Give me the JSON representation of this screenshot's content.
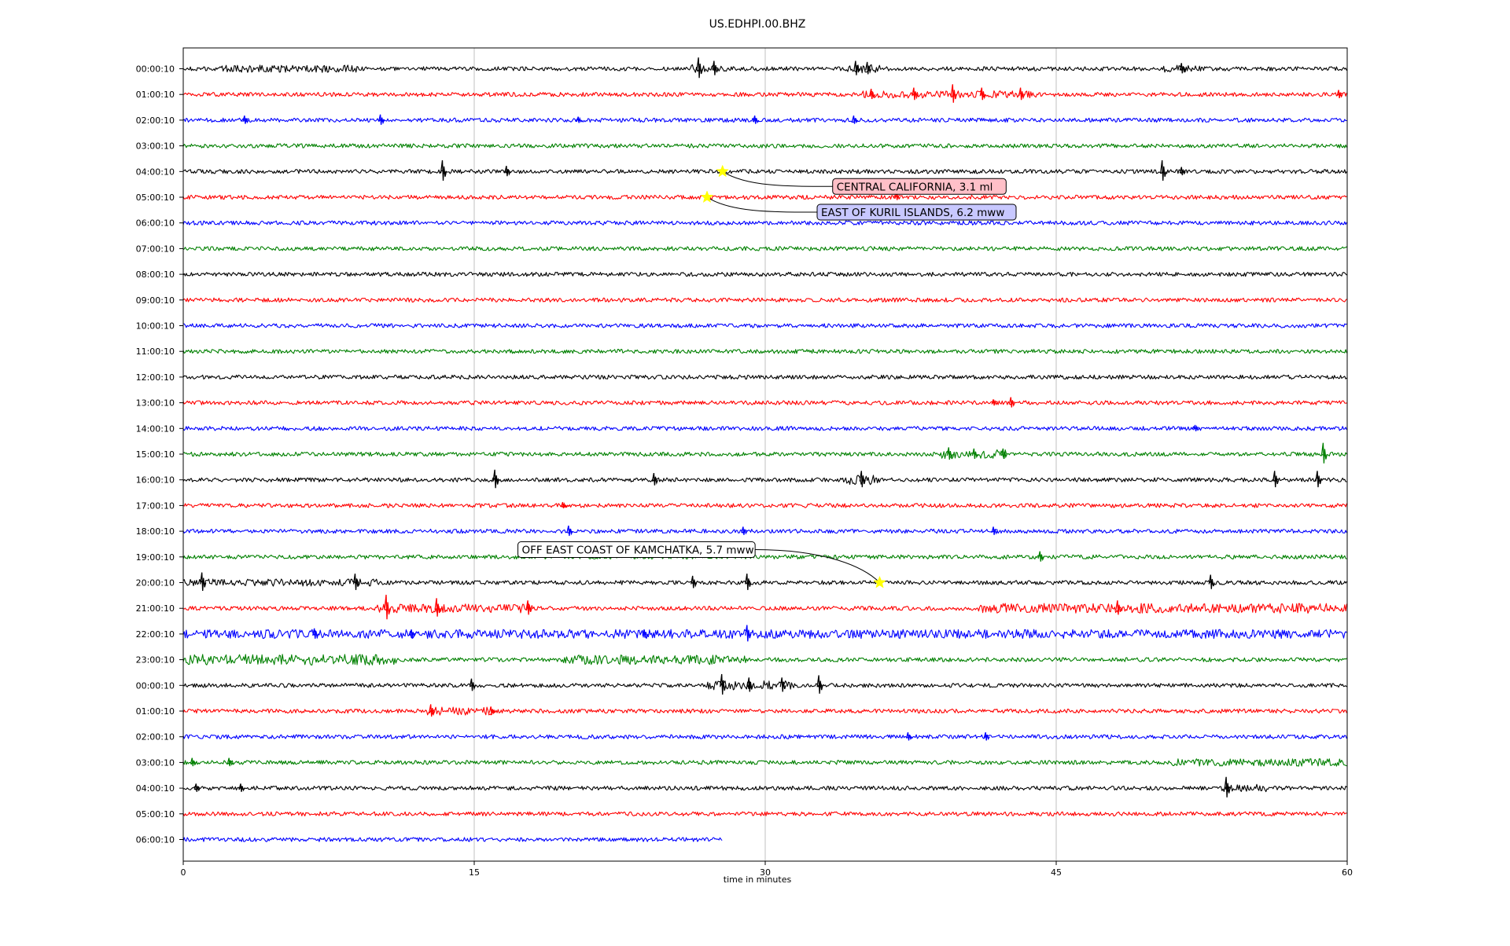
{
  "chart_data": {
    "type": "line",
    "title": "US.EDHPI.00.BHZ",
    "xlabel": "time in minutes",
    "ylabel": "",
    "xlim": [
      0,
      60
    ],
    "x_ticks": [
      0,
      15,
      30,
      45,
      60
    ],
    "grid": "vertical",
    "row_colors": [
      "#000000",
      "#ff0000",
      "#0000ff",
      "#008000"
    ],
    "rows": [
      {
        "label": "00:00:10",
        "end": 60
      },
      {
        "label": "01:00:10",
        "end": 60
      },
      {
        "label": "02:00:10",
        "end": 60
      },
      {
        "label": "03:00:10",
        "end": 60
      },
      {
        "label": "04:00:10",
        "end": 60
      },
      {
        "label": "05:00:10",
        "end": 60
      },
      {
        "label": "06:00:10",
        "end": 60
      },
      {
        "label": "07:00:10",
        "end": 60
      },
      {
        "label": "08:00:10",
        "end": 60
      },
      {
        "label": "09:00:10",
        "end": 60
      },
      {
        "label": "10:00:10",
        "end": 60
      },
      {
        "label": "11:00:10",
        "end": 60
      },
      {
        "label": "12:00:10",
        "end": 60
      },
      {
        "label": "13:00:10",
        "end": 60
      },
      {
        "label": "14:00:10",
        "end": 60
      },
      {
        "label": "15:00:10",
        "end": 60
      },
      {
        "label": "16:00:10",
        "end": 60
      },
      {
        "label": "17:00:10",
        "end": 60
      },
      {
        "label": "18:00:10",
        "end": 60
      },
      {
        "label": "19:00:10",
        "end": 60
      },
      {
        "label": "20:00:10",
        "end": 60
      },
      {
        "label": "21:00:10",
        "end": 60
      },
      {
        "label": "22:00:10",
        "end": 60
      },
      {
        "label": "23:00:10",
        "end": 60
      },
      {
        "label": "00:00:10",
        "end": 60
      },
      {
        "label": "01:00:10",
        "end": 60
      },
      {
        "label": "02:00:10",
        "end": 60
      },
      {
        "label": "03:00:10",
        "end": 60
      },
      {
        "label": "04:00:10",
        "end": 60
      },
      {
        "label": "05:00:10",
        "end": 60
      },
      {
        "label": "06:00:10",
        "end": 27.8
      }
    ],
    "events": [
      {
        "label": "CENTRAL CALIFORNIA, 3.1 ml",
        "row": 4,
        "minute": 27.8,
        "box_color": "#ffc0c8",
        "box_side": "right"
      },
      {
        "label": "EAST OF KURIL ISLANDS, 6.2 mww",
        "row": 5,
        "minute": 27.0,
        "box_color": "#c8c8ff",
        "box_side": "right"
      },
      {
        "label": "OFF EAST COAST OF KAMCHATKA, 5.7 mww",
        "row": 20,
        "minute": 35.9,
        "box_color": "#ffffff",
        "box_side": "left"
      }
    ],
    "spikes": [
      {
        "row": 0,
        "minute": 26.6,
        "amp": 1.0
      },
      {
        "row": 0,
        "minute": 27.4,
        "amp": 0.7
      },
      {
        "row": 0,
        "minute": 34.7,
        "amp": 0.7
      },
      {
        "row": 0,
        "minute": 35.3,
        "amp": 0.6
      },
      {
        "row": 0,
        "minute": 51.5,
        "amp": 0.5
      },
      {
        "row": 1,
        "minute": 35.5,
        "amp": 0.5
      },
      {
        "row": 1,
        "minute": 37.7,
        "amp": 0.6
      },
      {
        "row": 1,
        "minute": 39.7,
        "amp": 0.9
      },
      {
        "row": 1,
        "minute": 41.2,
        "amp": 0.6
      },
      {
        "row": 1,
        "minute": 43.2,
        "amp": 0.6
      },
      {
        "row": 1,
        "minute": 59.6,
        "amp": 0.4
      },
      {
        "row": 2,
        "minute": 3.2,
        "amp": 0.4
      },
      {
        "row": 2,
        "minute": 10.2,
        "amp": 0.5
      },
      {
        "row": 2,
        "minute": 20.4,
        "amp": 0.3
      },
      {
        "row": 2,
        "minute": 29.5,
        "amp": 0.4
      },
      {
        "row": 2,
        "minute": 34.6,
        "amp": 0.4
      },
      {
        "row": 4,
        "minute": 13.4,
        "amp": 1.0
      },
      {
        "row": 4,
        "minute": 16.7,
        "amp": 0.5
      },
      {
        "row": 4,
        "minute": 50.5,
        "amp": 1.0
      },
      {
        "row": 4,
        "minute": 51.5,
        "amp": 0.4
      },
      {
        "row": 5,
        "minute": 36.8,
        "amp": 0.3
      },
      {
        "row": 13,
        "minute": 41.8,
        "amp": 0.3
      },
      {
        "row": 13,
        "minute": 42.7,
        "amp": 0.5
      },
      {
        "row": 14,
        "minute": 52.2,
        "amp": 0.3
      },
      {
        "row": 15,
        "minute": 39.5,
        "amp": 0.6
      },
      {
        "row": 15,
        "minute": 40.8,
        "amp": 0.5
      },
      {
        "row": 15,
        "minute": 42.3,
        "amp": 0.5
      },
      {
        "row": 15,
        "minute": 58.8,
        "amp": 1.0
      },
      {
        "row": 16,
        "minute": 16.1,
        "amp": 0.9
      },
      {
        "row": 16,
        "minute": 24.3,
        "amp": 0.6
      },
      {
        "row": 16,
        "minute": 35.0,
        "amp": 0.8
      },
      {
        "row": 16,
        "minute": 56.3,
        "amp": 0.8
      },
      {
        "row": 16,
        "minute": 58.5,
        "amp": 0.8
      },
      {
        "row": 17,
        "minute": 19.6,
        "amp": 0.3
      },
      {
        "row": 18,
        "minute": 19.9,
        "amp": 0.5
      },
      {
        "row": 18,
        "minute": 28.9,
        "amp": 0.4
      },
      {
        "row": 18,
        "minute": 41.8,
        "amp": 0.4
      },
      {
        "row": 19,
        "minute": 44.2,
        "amp": 0.5
      },
      {
        "row": 20,
        "minute": 1.0,
        "amp": 0.9
      },
      {
        "row": 20,
        "minute": 8.9,
        "amp": 0.8
      },
      {
        "row": 20,
        "minute": 26.3,
        "amp": 0.6
      },
      {
        "row": 20,
        "minute": 29.1,
        "amp": 0.8
      },
      {
        "row": 20,
        "minute": 53.0,
        "amp": 0.7
      },
      {
        "row": 21,
        "minute": 10.5,
        "amp": 1.2
      },
      {
        "row": 21,
        "minute": 13.1,
        "amp": 0.9
      },
      {
        "row": 21,
        "minute": 17.8,
        "amp": 0.7
      },
      {
        "row": 21,
        "minute": 48.2,
        "amp": 0.7
      },
      {
        "row": 22,
        "minute": 6.8,
        "amp": 0.5
      },
      {
        "row": 22,
        "minute": 11.8,
        "amp": 0.4
      },
      {
        "row": 22,
        "minute": 23.8,
        "amp": 0.4
      },
      {
        "row": 22,
        "minute": 29.1,
        "amp": 0.8
      },
      {
        "row": 24,
        "minute": 14.9,
        "amp": 0.6
      },
      {
        "row": 24,
        "minute": 27.8,
        "amp": 1.0
      },
      {
        "row": 24,
        "minute": 29.2,
        "amp": 0.7
      },
      {
        "row": 24,
        "minute": 30.9,
        "amp": 0.7
      },
      {
        "row": 24,
        "minute": 32.8,
        "amp": 0.9
      },
      {
        "row": 25,
        "minute": 12.8,
        "amp": 0.6
      },
      {
        "row": 25,
        "minute": 15.9,
        "amp": 0.4
      },
      {
        "row": 26,
        "minute": 37.4,
        "amp": 0.4
      },
      {
        "row": 26,
        "minute": 41.4,
        "amp": 0.4
      },
      {
        "row": 27,
        "minute": 0.5,
        "amp": 0.4
      },
      {
        "row": 27,
        "minute": 2.4,
        "amp": 0.4
      },
      {
        "row": 28,
        "minute": 0.7,
        "amp": 0.4
      },
      {
        "row": 28,
        "minute": 3.0,
        "amp": 0.4
      },
      {
        "row": 28,
        "minute": 53.8,
        "amp": 1.0
      }
    ],
    "noisy_bands": [
      {
        "row": 0,
        "from": 2,
        "to": 9,
        "amp": 1.8
      },
      {
        "row": 0,
        "from": 26,
        "to": 28,
        "amp": 2.0
      },
      {
        "row": 0,
        "from": 34,
        "to": 36,
        "amp": 2.0
      },
      {
        "row": 0,
        "from": 50.5,
        "to": 52.5,
        "amp": 1.8
      },
      {
        "row": 1,
        "from": 35,
        "to": 44,
        "amp": 1.8
      },
      {
        "row": 15,
        "from": 39,
        "to": 42.5,
        "amp": 2.2
      },
      {
        "row": 16,
        "from": 34,
        "to": 36,
        "amp": 2.4
      },
      {
        "row": 20,
        "from": 0,
        "to": 10,
        "amp": 1.8
      },
      {
        "row": 21,
        "from": 10,
        "to": 18,
        "amp": 2.2
      },
      {
        "row": 21,
        "from": 41,
        "to": 60,
        "amp": 2.4
      },
      {
        "row": 22,
        "from": 0,
        "to": 60,
        "amp": 2.2
      },
      {
        "row": 23,
        "from": 0,
        "to": 11,
        "amp": 2.6
      },
      {
        "row": 23,
        "from": 19.5,
        "to": 29,
        "amp": 2.4
      },
      {
        "row": 24,
        "from": 27,
        "to": 31.5,
        "amp": 2.2
      },
      {
        "row": 25,
        "from": 12.5,
        "to": 16,
        "amp": 2.0
      },
      {
        "row": 27,
        "from": 51,
        "to": 60,
        "amp": 1.8
      },
      {
        "row": 28,
        "from": 53.5,
        "to": 56,
        "amp": 2.0
      }
    ]
  }
}
